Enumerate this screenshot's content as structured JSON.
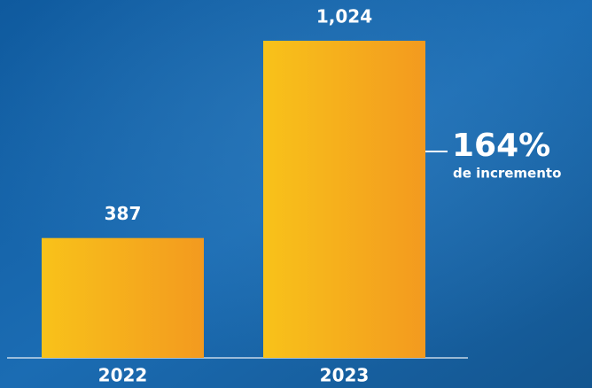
{
  "chart_data": {
    "type": "bar",
    "categories": [
      "2022",
      "2023"
    ],
    "values": [
      387,
      1024
    ],
    "value_labels": [
      "387",
      "1,024"
    ],
    "annotations": [
      "164%",
      "de incremento"
    ]
  }
}
